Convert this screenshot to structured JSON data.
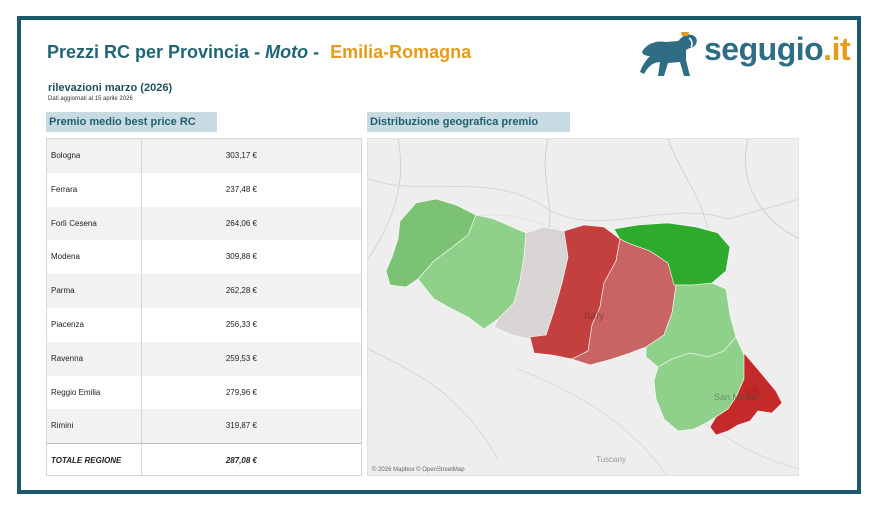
{
  "header": {
    "title_prefix": "Prezzi RC per Provincia -",
    "title_vehicle": "Moto",
    "title_separator": "-",
    "title_region": "Emilia-Romagna",
    "survey": "rilevazioni marzo (2026)",
    "updated": "Dati aggiornati al  15 aprile 2026"
  },
  "logo": {
    "name": "segugio",
    "suffix": ".it",
    "icon": "dog-icon"
  },
  "table": {
    "section_label": "Premio medio best price RC",
    "rows": [
      {
        "province": "Bologna",
        "price": "303,17 €"
      },
      {
        "province": "Ferrara",
        "price": "237,48 €"
      },
      {
        "province": "Forlì Cesena",
        "price": "264,06 €"
      },
      {
        "province": "Modena",
        "price": "309,88 €"
      },
      {
        "province": "Parma",
        "price": "262,28 €"
      },
      {
        "province": "Piacenza",
        "price": "256,33 €"
      },
      {
        "province": "Ravenna",
        "price": "259,53 €"
      },
      {
        "province": "Reggio Emilia",
        "price": "279,96 €"
      },
      {
        "province": "Rimini",
        "price": "319,87 €"
      }
    ],
    "total_label": "TOTALE REGIONE",
    "total_price": "287,08 €"
  },
  "map": {
    "section_label": "Distribuzione geografica premio",
    "attribution": "© 2026 Mapbox © OpenStreetMap",
    "labels": {
      "country": "Italy",
      "sanmarino": "San Marino",
      "tuscany": "Tuscany"
    },
    "colors": {
      "Piacenza": "#7cc274",
      "Parma": "#8fd08a",
      "Reggio Emilia": "#d9d4d4",
      "Modena": "#c4403f",
      "Bologna": "#c96464",
      "Ferrara": "#2eaa2c",
      "Ravenna": "#8fd08a",
      "Forlì Cesena": "#8fd08a",
      "Rimini": "#c42a2a"
    }
  }
}
